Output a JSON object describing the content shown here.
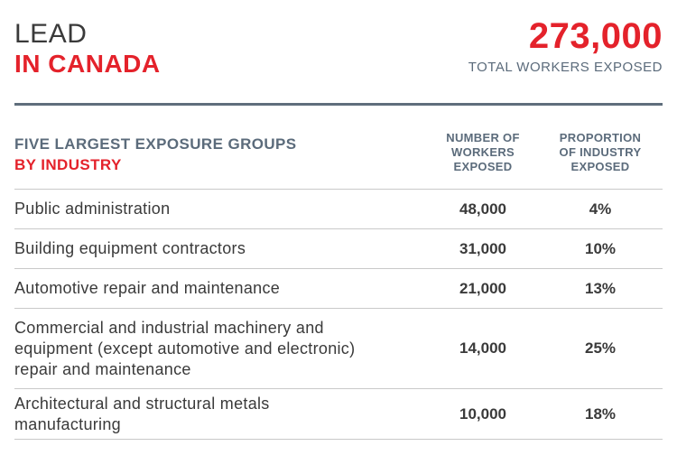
{
  "header": {
    "title_line1": "LEAD",
    "title_line2": "IN CANADA",
    "total": "273,000",
    "total_caption": "TOTAL WORKERS EXPOSED"
  },
  "table": {
    "group_title": "FIVE LARGEST EXPOSURE GROUPS",
    "group_subtitle": "BY INDUSTRY",
    "col1_header": [
      "NUMBER OF",
      "WORKERS",
      "EXPOSED"
    ],
    "col2_header": [
      "PROPORTION",
      "OF INDUSTRY",
      "EXPOSED"
    ]
  },
  "colors": {
    "accent": "#e4222b",
    "slate": "#5b6b7b",
    "text": "#3a3a3a"
  },
  "chart_data": {
    "type": "table",
    "title": "LEAD IN CANADA",
    "columns": [
      "FIVE LARGEST EXPOSURE GROUPS BY INDUSTRY",
      "NUMBER OF WORKERS EXPOSED",
      "PROPORTION OF INDUSTRY EXPOSED"
    ],
    "rows": [
      {
        "industry": [
          "Public administration"
        ],
        "workers": "48,000",
        "proportion": "4%"
      },
      {
        "industry": [
          "Building equipment contractors"
        ],
        "workers": "31,000",
        "proportion": "10%"
      },
      {
        "industry": [
          "Automotive repair and maintenance"
        ],
        "workers": "21,000",
        "proportion": "13%"
      },
      {
        "industry": [
          "Commercial and industrial machinery and",
          "equipment (except automotive and electronic)",
          "repair and maintenance"
        ],
        "workers": "14,000",
        "proportion": "25%"
      },
      {
        "industry": [
          "Architectural and structural metals",
          "manufacturing"
        ],
        "workers": "10,000",
        "proportion": "18%"
      }
    ],
    "workers_values": [
      48000,
      31000,
      21000,
      14000,
      10000
    ],
    "proportion_values": [
      4,
      10,
      13,
      25,
      18
    ]
  }
}
